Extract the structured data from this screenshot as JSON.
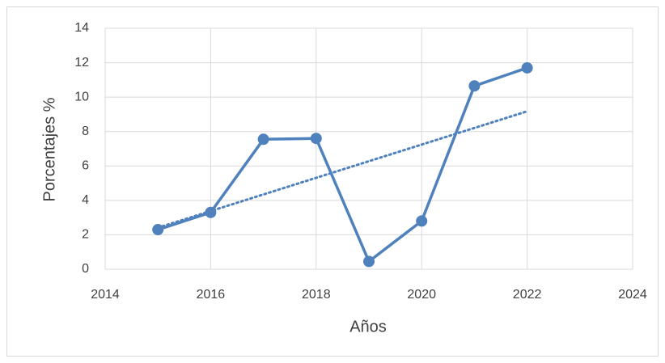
{
  "chart_data": {
    "type": "line",
    "x_label": "Años",
    "y_label": "Porcentajes %",
    "x": [
      2015,
      2016,
      2017,
      2018,
      2019,
      2020,
      2021,
      2022
    ],
    "series": [
      {
        "color": "#4f81bd",
        "values": [
          2.3,
          3.3,
          7.55,
          7.6,
          0.45,
          2.8,
          10.65,
          11.7
        ]
      }
    ],
    "trendline": "linear",
    "xlim": [
      2014,
      2024
    ],
    "xticks": [
      2014,
      2016,
      2018,
      2020,
      2022,
      2024
    ],
    "ylim": [
      0,
      14
    ],
    "yticks": [
      0,
      2,
      4,
      6,
      8,
      10,
      12,
      14
    ],
    "grid": true
  }
}
